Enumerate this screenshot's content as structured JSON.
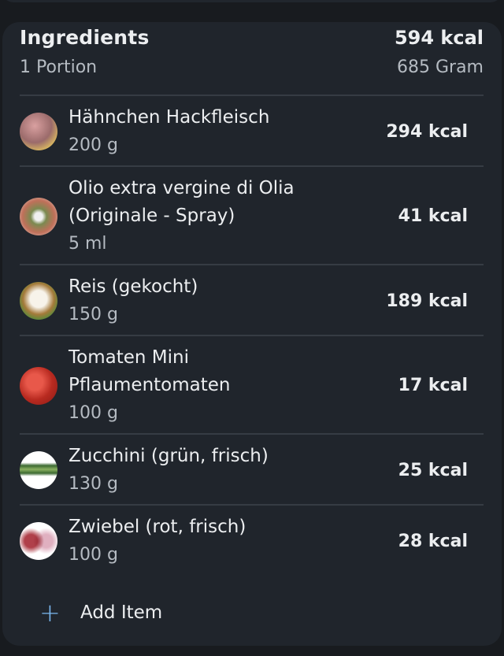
{
  "header": {
    "title": "Ingredients",
    "total_kcal": "594 kcal",
    "portion": "1 Portion",
    "weight": "685 Gram"
  },
  "items": [
    {
      "name": "Hähnchen Hackfleisch",
      "qty": "200 g",
      "kcal": "294 kcal"
    },
    {
      "name": "Olio extra vergine di Olia (Originale - Spray)",
      "qty": "5 ml",
      "kcal": "41 kcal"
    },
    {
      "name": "Reis (gekocht)",
      "qty": "150 g",
      "kcal": "189 kcal"
    },
    {
      "name": "Tomaten Mini Pflaumentomaten",
      "qty": "100 g",
      "kcal": "17 kcal"
    },
    {
      "name": "Zucchini (grün, frisch)",
      "qty": "130 g",
      "kcal": "25 kcal"
    },
    {
      "name": "Zwiebel (rot, frisch)",
      "qty": "100 g",
      "kcal": "28 kcal"
    }
  ],
  "add_item": {
    "label": "Add Item",
    "icon": "plus-icon"
  },
  "colors": {
    "accent": "#7ab8f0",
    "card": "#20252c",
    "background": "#181b1f"
  }
}
